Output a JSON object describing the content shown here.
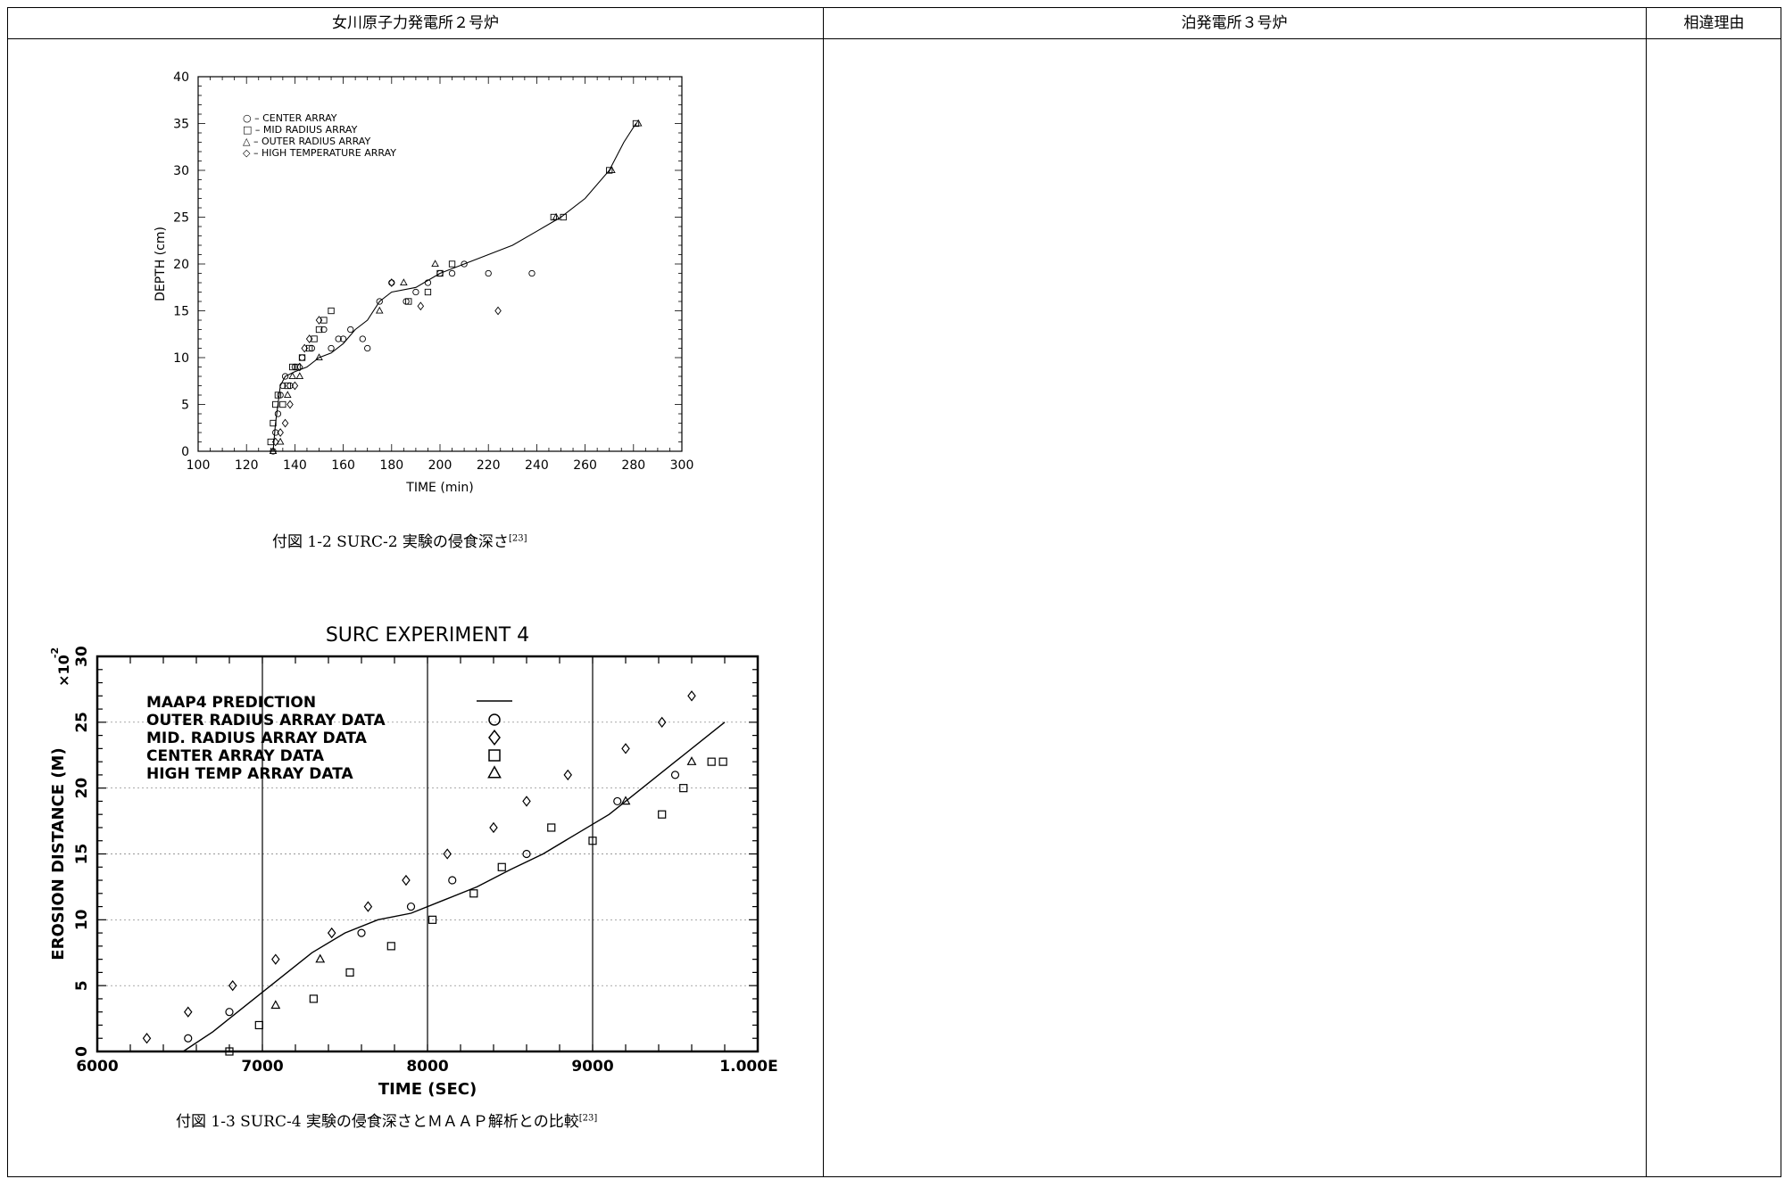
{
  "header": {
    "col1": "女川原子力発電所２号炉",
    "col2": "泊発電所３号炉",
    "col3": "相違理由"
  },
  "figures": {
    "fig2": {
      "caption_main": "付図 1-2 SURC-2 実験の侵食深さ",
      "caption_ref": "[23]"
    },
    "fig3": {
      "caption_main": "付図 1-3 SURC-4 実験の侵食深さとＭＡＡＰ解析との比較",
      "caption_ref": "[23]"
    }
  },
  "chart_data": [
    {
      "type": "scatter",
      "title": "",
      "xlabel": "TIME    (min)",
      "ylabel": "DEPTH    (cm)",
      "xlim": [
        100,
        300
      ],
      "ylim": [
        0,
        40
      ],
      "xticks": [
        "100",
        "120",
        "140",
        "160",
        "180",
        "200",
        "220",
        "240",
        "260",
        "280",
        "300"
      ],
      "yticks": [
        "0",
        "5",
        "10",
        "15",
        "20",
        "25",
        "30",
        "35",
        "40"
      ],
      "legend": [
        "○ – CENTER ARRAY",
        "□ – MID RADIUS ARRAY",
        "△ – OUTER RADIUS ARRAY",
        "◇ – HIGH TEMPERATURE ARRAY"
      ],
      "legend_position": "top-left",
      "grid": false,
      "curve": [
        [
          131,
          0
        ],
        [
          132,
          3
        ],
        [
          133,
          5
        ],
        [
          134,
          7
        ],
        [
          136,
          8
        ],
        [
          140,
          8.5
        ],
        [
          145,
          9
        ],
        [
          150,
          10
        ],
        [
          155,
          10.5
        ],
        [
          160,
          11.5
        ],
        [
          165,
          13
        ],
        [
          170,
          14
        ],
        [
          175,
          16
        ],
        [
          180,
          17
        ],
        [
          190,
          17.5
        ],
        [
          200,
          19
        ],
        [
          210,
          20
        ],
        [
          220,
          21
        ],
        [
          230,
          22
        ],
        [
          240,
          23.5
        ],
        [
          250,
          25
        ],
        [
          260,
          27
        ],
        [
          270,
          30
        ],
        [
          276,
          33
        ],
        [
          281,
          35
        ]
      ],
      "series": [
        {
          "name": "CENTER ARRAY",
          "marker": "circle",
          "x": [
            131,
            132,
            133,
            134,
            135,
            136,
            138,
            140,
            143,
            147,
            152,
            155,
            158,
            160,
            163,
            168,
            170,
            175,
            180,
            186,
            190,
            195,
            200,
            205,
            210,
            220,
            238
          ],
          "y": [
            0,
            2,
            4,
            6,
            7,
            8,
            7,
            9,
            10,
            11,
            13,
            11,
            12,
            12,
            13,
            12,
            11,
            16,
            18,
            16,
            17,
            18,
            19,
            19,
            20,
            19,
            19
          ]
        },
        {
          "name": "MID RADIUS ARRAY",
          "marker": "square",
          "x": [
            130,
            131,
            132,
            133,
            135,
            137,
            139,
            141,
            143,
            146,
            148,
            150,
            152,
            155,
            187,
            195,
            200,
            205,
            247,
            251,
            270,
            281
          ],
          "y": [
            1,
            3,
            5,
            6,
            5,
            7,
            9,
            9,
            10,
            11,
            12,
            13,
            14,
            15,
            16,
            17,
            19,
            20,
            25,
            25,
            30,
            35
          ]
        },
        {
          "name": "OUTER RADIUS ARRAY",
          "marker": "triangle",
          "x": [
            131,
            134,
            137,
            139,
            142,
            150,
            175,
            185,
            198,
            248,
            271,
            282
          ],
          "y": [
            0,
            1,
            6,
            8,
            8,
            10,
            15,
            18,
            20,
            25,
            30,
            35
          ]
        },
        {
          "name": "HIGH TEMPERATURE ARRAY",
          "marker": "diamond",
          "x": [
            132,
            134,
            136,
            138,
            140,
            142,
            144,
            146,
            150,
            180,
            192,
            224
          ],
          "y": [
            1,
            2,
            3,
            5,
            7,
            9,
            11,
            12,
            14,
            18,
            15.5,
            15
          ]
        }
      ]
    },
    {
      "type": "scatter",
      "title": "SURC EXPERIMENT 4",
      "xlabel": "TIME (SEC)",
      "ylabel": "EROSION DISTANCE (M)",
      "yscale_label": "×10",
      "yscale_exp": "-2",
      "xlim": [
        6000,
        10000
      ],
      "ylim": [
        0,
        30
      ],
      "xticks": [
        "6000",
        "7000",
        "8000",
        "9000",
        "1.000E"
      ],
      "yticks": [
        "0",
        "5",
        "10",
        "15",
        "20",
        "25",
        "30"
      ],
      "legend": [
        "MAAP4 PREDICTION",
        "OUTER RADIUS ARRAY DATA",
        "MID. RADIUS ARRAY DATA",
        "CENTER ARRAY DATA",
        "HIGH TEMP ARRAY DATA"
      ],
      "legend_position": "top-left",
      "grid": true,
      "curve": [
        [
          6520,
          0
        ],
        [
          6700,
          1.5
        ],
        [
          6900,
          3.5
        ],
        [
          7100,
          5.5
        ],
        [
          7300,
          7.5
        ],
        [
          7500,
          9
        ],
        [
          7700,
          10
        ],
        [
          7900,
          10.5
        ],
        [
          8100,
          11.5
        ],
        [
          8300,
          12.5
        ],
        [
          8500,
          13.8
        ],
        [
          8700,
          15
        ],
        [
          8900,
          16.5
        ],
        [
          9100,
          18
        ],
        [
          9300,
          20
        ],
        [
          9500,
          22
        ],
        [
          9700,
          24
        ],
        [
          9800,
          25
        ]
      ],
      "series": [
        {
          "name": "OUTER RADIUS ARRAY DATA",
          "marker": "circle",
          "x": [
            6550,
            6800,
            7600,
            7900,
            8150,
            8600,
            9150,
            9500
          ],
          "y": [
            1,
            3,
            9,
            11,
            13,
            15,
            19,
            21
          ]
        },
        {
          "name": "MID. RADIUS ARRAY DATA",
          "marker": "diamond",
          "x": [
            6300,
            6550,
            6820,
            7080,
            7420,
            7640,
            7870,
            8120,
            8400,
            8600,
            8850,
            9200,
            9420,
            9600
          ],
          "y": [
            1,
            3,
            5,
            7,
            9,
            11,
            13,
            15,
            17,
            19,
            21,
            23,
            25,
            27
          ]
        },
        {
          "name": "CENTER ARRAY DATA",
          "marker": "square",
          "x": [
            6800,
            6980,
            7310,
            7530,
            7780,
            8030,
            8280,
            8450,
            8750,
            9000,
            9420,
            9550,
            9720,
            9790
          ],
          "y": [
            0,
            2,
            4,
            6,
            8,
            10,
            12,
            14,
            17,
            16,
            18,
            20,
            22,
            22
          ],
          "note": ""
        },
        {
          "name": "HIGH TEMP ARRAY DATA",
          "marker": "triangle",
          "x": [
            7080,
            7350,
            9200,
            9600
          ],
          "y": [
            3.5,
            7,
            19,
            22
          ]
        }
      ]
    }
  ],
  "colors": {
    "accent_text": "#1a3a9a",
    "line": "#000000"
  }
}
